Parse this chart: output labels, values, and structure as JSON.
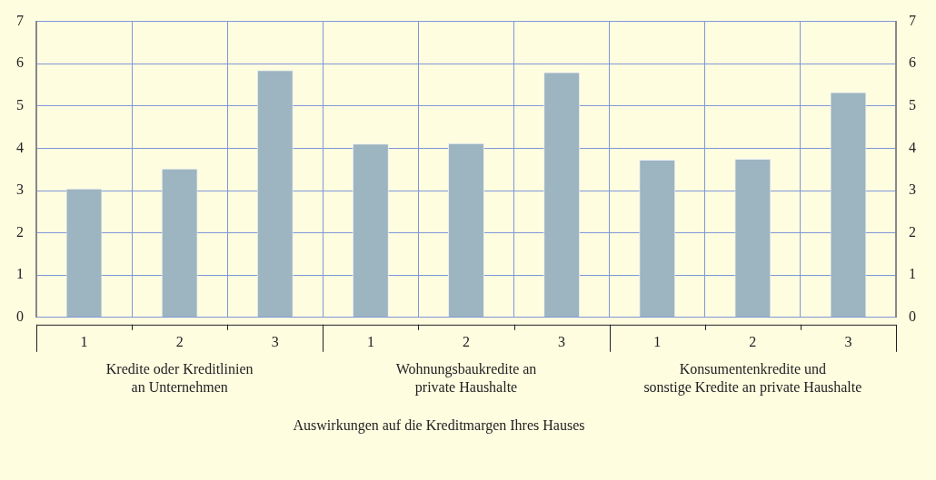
{
  "chart_data": {
    "type": "bar",
    "categories": [
      "1",
      "2",
      "3",
      "1",
      "2",
      "3",
      "1",
      "2",
      "3"
    ],
    "values": [
      3.05,
      3.52,
      5.85,
      4.11,
      4.12,
      5.8,
      3.73,
      3.75,
      5.33
    ],
    "color": "#9db4c1",
    "xlabel": "Auswirkungen auf die Kreditmargen Ihres Hauses",
    "annotations": [
      "Kredite oder Kreditlinien\nan Unternehmen",
      "Wohnungsbaukredite an\nprivate Haushalte",
      "Konsumentenkredite und\nsonstige Kredite an private Haushalte"
    ],
    "ylim": [
      0,
      7
    ],
    "yticks": [
      0,
      1,
      2,
      3,
      4,
      5,
      6,
      7
    ],
    "y2lim": [
      0,
      7
    ],
    "y2ticks": [
      0,
      1,
      2,
      3,
      4,
      5,
      6,
      7
    ],
    "grid": true,
    "legend": false
  }
}
